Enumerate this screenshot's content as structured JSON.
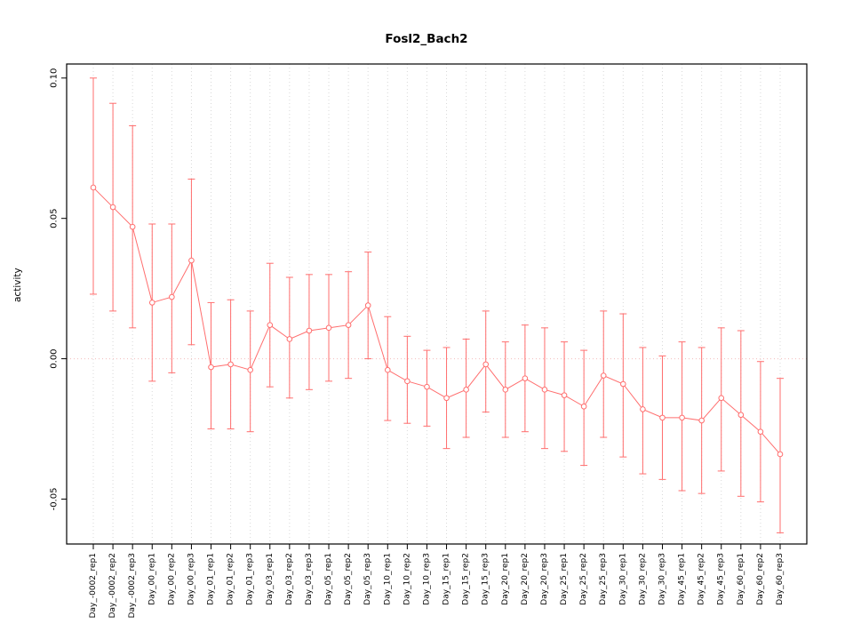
{
  "chart_data": {
    "type": "line",
    "title": "Fosl2_Bach2",
    "ylabel": "activity",
    "xlabel": "",
    "ylim": [
      -0.066,
      0.105
    ],
    "ytick_values": [
      -0.05,
      0.0,
      0.05,
      0.1
    ],
    "ytick_labels": [
      "-0.05",
      "0.00",
      "0.05",
      "0.10"
    ],
    "grid": "vertical-dotted",
    "zero_line": true,
    "legend": "none",
    "series_color": "#ff6e6e",
    "grid_color": "#d8d8d8",
    "zero_line_color": "#f3bcbc",
    "box_color": "#000000",
    "categories": [
      "Day_-0002_rep1",
      "Day_-0002_rep2",
      "Day_-0002_rep3",
      "Day_00_rep1",
      "Day_00_rep2",
      "Day_00_rep3",
      "Day_01_rep1",
      "Day_01_rep2",
      "Day_01_rep3",
      "Day_03_rep1",
      "Day_03_rep2",
      "Day_03_rep3",
      "Day_05_rep1",
      "Day_05_rep2",
      "Day_05_rep3",
      "Day_10_rep1",
      "Day_10_rep2",
      "Day_10_rep3",
      "Day_15_rep1",
      "Day_15_rep2",
      "Day_15_rep3",
      "Day_20_rep1",
      "Day_20_rep2",
      "Day_20_rep3",
      "Day_25_rep1",
      "Day_25_rep2",
      "Day_25_rep3",
      "Day_30_rep1",
      "Day_30_rep2",
      "Day_30_rep3",
      "Day_45_rep1",
      "Day_45_rep2",
      "Day_45_rep3",
      "Day_60_rep1",
      "Day_60_rep2",
      "Day_60_rep3"
    ],
    "means": [
      0.061,
      0.054,
      0.047,
      0.02,
      0.022,
      0.035,
      -0.003,
      -0.002,
      -0.004,
      0.012,
      0.007,
      0.01,
      0.011,
      0.012,
      0.019,
      -0.004,
      -0.008,
      -0.01,
      -0.014,
      -0.011,
      -0.002,
      -0.011,
      -0.007,
      -0.011,
      -0.013,
      -0.017,
      -0.006,
      -0.009,
      -0.018,
      -0.021,
      -0.021,
      -0.022,
      -0.014,
      -0.02,
      -0.026,
      -0.034
    ],
    "upper": [
      0.1,
      0.091,
      0.083,
      0.048,
      0.048,
      0.064,
      0.02,
      0.021,
      0.017,
      0.034,
      0.029,
      0.03,
      0.03,
      0.031,
      0.038,
      0.015,
      0.008,
      0.003,
      0.004,
      0.007,
      0.017,
      0.006,
      0.012,
      0.011,
      0.006,
      0.003,
      0.017,
      0.016,
      0.004,
      0.001,
      0.006,
      0.004,
      0.011,
      0.01,
      -0.001,
      -0.007
    ],
    "lower": [
      0.023,
      0.017,
      0.011,
      -0.008,
      -0.005,
      0.005,
      -0.025,
      -0.025,
      -0.026,
      -0.01,
      -0.014,
      -0.011,
      -0.008,
      -0.007,
      0.0,
      -0.022,
      -0.023,
      -0.024,
      -0.032,
      -0.028,
      -0.019,
      -0.028,
      -0.026,
      -0.032,
      -0.033,
      -0.038,
      -0.028,
      -0.035,
      -0.041,
      -0.043,
      -0.047,
      -0.048,
      -0.04,
      -0.049,
      -0.051,
      -0.062
    ]
  }
}
